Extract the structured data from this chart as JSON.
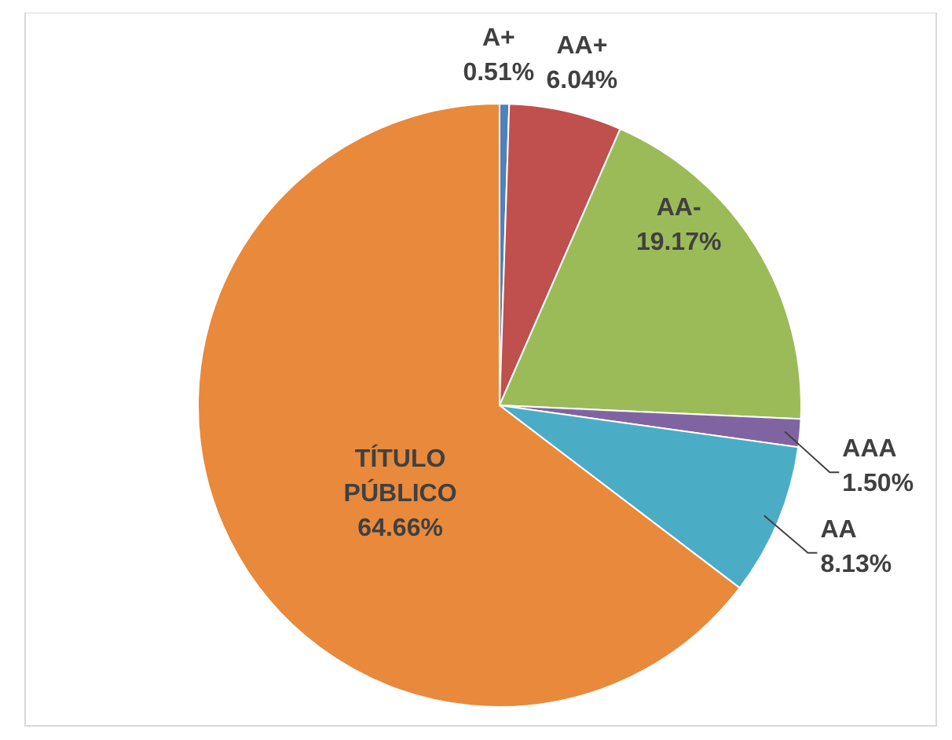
{
  "chart_data": {
    "type": "pie",
    "categories": [
      "A+",
      "AA+",
      "AA-",
      "AAA",
      "AA",
      "TÍTULO PÚBLICO"
    ],
    "values": [
      0.51,
      6.04,
      19.17,
      1.5,
      8.13,
      64.66
    ],
    "colors": [
      "#4f81bd",
      "#c0504d",
      "#9bbb59",
      "#8064a2",
      "#4bacc6",
      "#e8893c"
    ],
    "value_labels": [
      "0.51%",
      "6.04%",
      "19.17%",
      "1.50%",
      "8.13%",
      "64.66%"
    ]
  }
}
